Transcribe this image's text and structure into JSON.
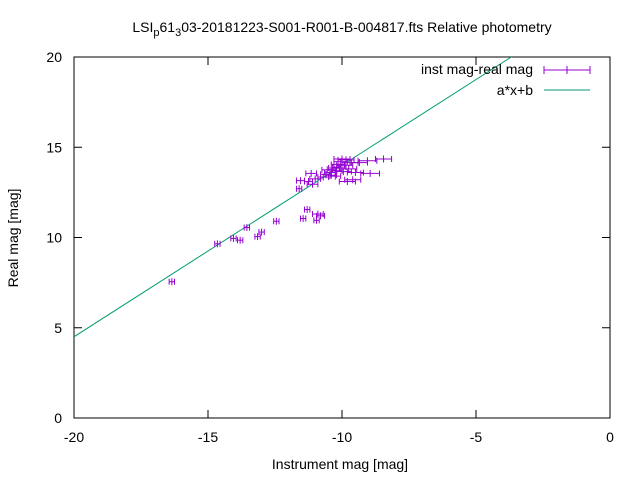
{
  "chart_data": {
    "type": "scatter",
    "title": {
      "prefix": "LSI",
      "sub1": "p",
      "mid": "61",
      "sub2": "3",
      "suffix": "03-20181223-S001-R001-B-004817.fts Relative photometry"
    },
    "xlabel": "Instrument mag [mag]",
    "ylabel": "Real mag [mag]",
    "xlim": [
      -20,
      0
    ],
    "ylim": [
      0,
      20
    ],
    "xticks": [
      -20,
      -15,
      -10,
      -5,
      0
    ],
    "yticks": [
      0,
      5,
      10,
      15,
      20
    ],
    "grid": false,
    "legend_position": "top-right",
    "series": [
      {
        "name": "inst mag-real mag",
        "kind": "errorbar-points",
        "color": "#9400d3",
        "points": [
          [
            -16.35,
            7.55,
            0.1
          ],
          [
            -14.65,
            9.65,
            0.1
          ],
          [
            -14.05,
            9.95,
            0.1
          ],
          [
            -13.8,
            9.85,
            0.1
          ],
          [
            -13.55,
            10.55,
            0.1
          ],
          [
            -13.15,
            10.05,
            0.1
          ],
          [
            -13.0,
            10.3,
            0.1
          ],
          [
            -12.45,
            10.9,
            0.1
          ],
          [
            -11.6,
            12.7,
            0.1
          ],
          [
            -11.55,
            13.15,
            0.15
          ],
          [
            -11.45,
            11.05,
            0.1
          ],
          [
            -11.3,
            11.55,
            0.1
          ],
          [
            -11.25,
            13.1,
            0.15
          ],
          [
            -11.15,
            13.55,
            0.2
          ],
          [
            -11.1,
            12.95,
            0.2
          ],
          [
            -11.0,
            13.25,
            0.2
          ],
          [
            -10.95,
            10.95,
            0.1
          ],
          [
            -10.9,
            11.3,
            0.2
          ],
          [
            -10.8,
            11.2,
            0.15
          ],
          [
            -10.7,
            13.35,
            0.2
          ],
          [
            -10.6,
            13.5,
            0.2
          ],
          [
            -10.55,
            13.75,
            0.2
          ],
          [
            -10.45,
            13.6,
            0.2
          ],
          [
            -10.4,
            13.45,
            0.2
          ],
          [
            -10.3,
            13.85,
            0.2
          ],
          [
            -10.25,
            13.4,
            0.2
          ],
          [
            -10.2,
            13.7,
            0.2
          ],
          [
            -10.15,
            14.05,
            0.25
          ],
          [
            -10.1,
            13.9,
            0.25
          ],
          [
            -10.05,
            14.2,
            0.25
          ],
          [
            -10.0,
            14.35,
            0.3
          ],
          [
            -9.95,
            13.65,
            0.3
          ],
          [
            -9.9,
            14.0,
            0.3
          ],
          [
            -9.85,
            14.3,
            0.3
          ],
          [
            -9.8,
            13.1,
            0.3
          ],
          [
            -9.75,
            13.8,
            0.3
          ],
          [
            -9.7,
            14.15,
            0.3
          ],
          [
            -9.6,
            13.2,
            0.3
          ],
          [
            -9.5,
            13.6,
            0.3
          ],
          [
            -9.35,
            14.15,
            0.3
          ],
          [
            -9.05,
            14.25,
            0.35
          ],
          [
            -8.95,
            13.55,
            0.35
          ],
          [
            -8.45,
            14.35,
            0.3
          ]
        ]
      },
      {
        "name": "a*x+b",
        "kind": "line",
        "color": "#009e73",
        "line": {
          "slope": 0.95,
          "intercept": 23.5
        }
      }
    ]
  }
}
